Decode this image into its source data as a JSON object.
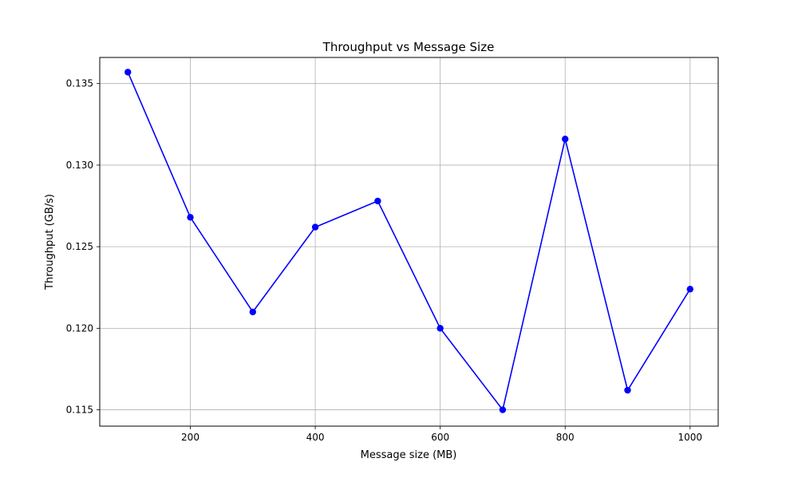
{
  "chart_data": {
    "type": "line",
    "title": "Throughput vs Message Size",
    "xlabel": "Message size (MB)",
    "ylabel": "Throughput (GB/s)",
    "x": [
      100,
      200,
      300,
      400,
      500,
      600,
      700,
      800,
      900,
      1000
    ],
    "series": [
      {
        "values": [
          0.1357,
          0.1268,
          0.121,
          0.1262,
          0.1278,
          0.12,
          0.115,
          0.1316,
          0.1162,
          0.1224
        ]
      }
    ],
    "xlim": [
      55,
      1045
    ],
    "ylim": [
      0.114,
      0.1366
    ],
    "xticks": [
      200,
      400,
      600,
      800,
      1000
    ],
    "yticks": [
      0.115,
      0.12,
      0.125,
      0.13,
      0.135
    ],
    "xtick_labels": [
      "200",
      "400",
      "600",
      "800",
      "1000"
    ],
    "ytick_labels": [
      "0.115",
      "0.120",
      "0.125",
      "0.130",
      "0.135"
    ],
    "grid": true,
    "line_color": "#0000ff",
    "marker": "circle"
  }
}
